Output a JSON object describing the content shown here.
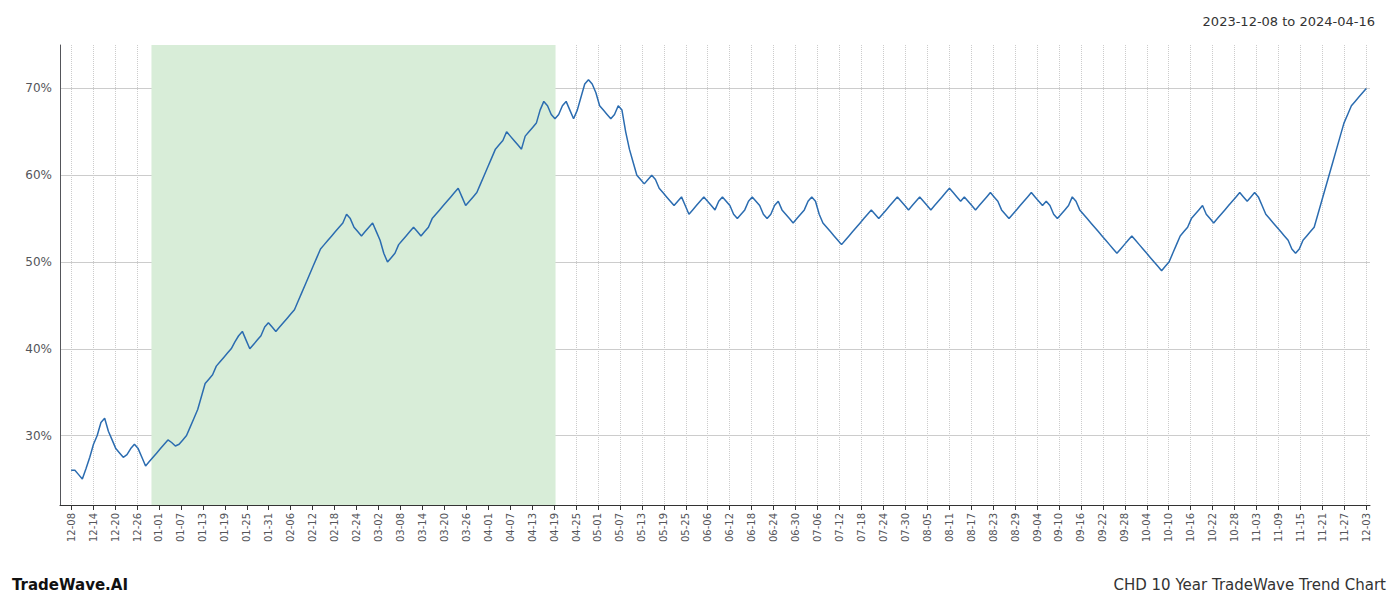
{
  "chart_data": {
    "type": "line",
    "title": "2023-12-08 to 2024-04-16",
    "annotations": [
      "TradeWave.AI",
      "CHD 10 Year TradeWave Trend Chart"
    ],
    "color": "#2b6cb0",
    "grid": true,
    "shade": {
      "x_start": 21.576,
      "x_end": 130.152,
      "color": "#d8edd8"
    },
    "xlim": [
      -3,
      349
    ],
    "xticks": [
      {
        "value": 0,
        "label": "12-08"
      },
      {
        "value": 5.898305,
        "label": "12-14"
      },
      {
        "value": 11.79661,
        "label": "12-20"
      },
      {
        "value": 17.694915,
        "label": "12-26"
      },
      {
        "value": 23.59322,
        "label": "01-01"
      },
      {
        "value": 29.491525,
        "label": "01-07"
      },
      {
        "value": 35.389831,
        "label": "01-13"
      },
      {
        "value": 41.288136,
        "label": "01-19"
      },
      {
        "value": 47.186441,
        "label": "01-25"
      },
      {
        "value": 53.084746,
        "label": "01-31"
      },
      {
        "value": 58.983051,
        "label": "02-06"
      },
      {
        "value": 64.881356,
        "label": "02-12"
      },
      {
        "value": 70.779661,
        "label": "02-18"
      },
      {
        "value": 76.677966,
        "label": "02-24"
      },
      {
        "value": 82.576271,
        "label": "03-02"
      },
      {
        "value": 88.474576,
        "label": "03-08"
      },
      {
        "value": 94.372881,
        "label": "03-14"
      },
      {
        "value": 100.271186,
        "label": "03-20"
      },
      {
        "value": 106.169492,
        "label": "03-26"
      },
      {
        "value": 112.067797,
        "label": "04-01"
      },
      {
        "value": 117.966102,
        "label": "04-07"
      },
      {
        "value": 123.864407,
        "label": "04-13"
      },
      {
        "value": 129.762712,
        "label": "04-19"
      },
      {
        "value": 135.661017,
        "label": "04-25"
      },
      {
        "value": 141.559322,
        "label": "05-01"
      },
      {
        "value": 147.457627,
        "label": "05-07"
      },
      {
        "value": 153.355932,
        "label": "05-13"
      },
      {
        "value": 159.254237,
        "label": "05-19"
      },
      {
        "value": 165.152542,
        "label": "05-25"
      },
      {
        "value": 171.050847,
        "label": "06-06"
      },
      {
        "value": 176.949153,
        "label": "06-12"
      },
      {
        "value": 182.847458,
        "label": "06-18"
      },
      {
        "value": 188.745763,
        "label": "06-24"
      },
      {
        "value": 194.644068,
        "label": "06-30"
      },
      {
        "value": 200.542373,
        "label": "07-06"
      },
      {
        "value": 206.440678,
        "label": "07-12"
      },
      {
        "value": 212.338983,
        "label": "07-18"
      },
      {
        "value": 218.237288,
        "label": "07-24"
      },
      {
        "value": 224.135593,
        "label": "07-30"
      },
      {
        "value": 230.033898,
        "label": "08-05"
      },
      {
        "value": 235.932203,
        "label": "08-11"
      },
      {
        "value": 241.830508,
        "label": "08-17"
      },
      {
        "value": 247.728814,
        "label": "08-23"
      },
      {
        "value": 253.627119,
        "label": "08-29"
      },
      {
        "value": 259.525424,
        "label": "09-04"
      },
      {
        "value": 265.423729,
        "label": "09-10"
      },
      {
        "value": 271.322034,
        "label": "09-16"
      },
      {
        "value": 277.220339,
        "label": "09-22"
      },
      {
        "value": 283.118644,
        "label": "09-28"
      },
      {
        "value": 289.016949,
        "label": "10-04"
      },
      {
        "value": 294.915254,
        "label": "10-10"
      },
      {
        "value": 300.813559,
        "label": "10-16"
      },
      {
        "value": 306.711864,
        "label": "10-22"
      },
      {
        "value": 312.610169,
        "label": "10-28"
      },
      {
        "value": 318.508475,
        "label": "11-03"
      },
      {
        "value": 324.40678,
        "label": "11-09"
      },
      {
        "value": 330.305085,
        "label": "11-15"
      },
      {
        "value": 336.20339,
        "label": "11-21"
      },
      {
        "value": 342.101695,
        "label": "11-27"
      },
      {
        "value": 348,
        "label": "12-03"
      }
    ],
    "ylim": [
      22,
      75
    ],
    "yticks": [
      {
        "value": 30,
        "label": "30%"
      },
      {
        "value": 40,
        "label": "40%"
      },
      {
        "value": 50,
        "label": "50%"
      },
      {
        "value": 60,
        "label": "60%"
      },
      {
        "value": 70,
        "label": "70%"
      }
    ],
    "x": [
      0,
      1,
      2,
      3,
      4,
      5,
      6,
      7,
      8,
      9,
      10,
      11,
      12,
      13,
      14,
      15,
      16,
      17,
      18,
      19,
      20,
      21,
      22,
      23,
      24,
      25,
      26,
      27,
      28,
      29,
      30,
      31,
      32,
      33,
      34,
      35,
      36,
      37,
      38,
      39,
      40,
      41,
      42,
      43,
      44,
      45,
      46,
      47,
      48,
      49,
      50,
      51,
      52,
      53,
      54,
      55,
      56,
      57,
      58,
      59,
      60,
      61,
      62,
      63,
      64,
      65,
      66,
      67,
      68,
      69,
      70,
      71,
      72,
      73,
      74,
      75,
      76,
      77,
      78,
      79,
      80,
      81,
      82,
      83,
      84,
      85,
      86,
      87,
      88,
      89,
      90,
      91,
      92,
      93,
      94,
      95,
      96,
      97,
      98,
      99,
      100,
      101,
      102,
      103,
      104,
      105,
      106,
      107,
      108,
      109,
      110,
      111,
      112,
      113,
      114,
      115,
      116,
      117,
      118,
      119,
      120,
      121,
      122,
      123,
      124,
      125,
      126,
      127,
      128,
      129,
      130,
      131,
      132,
      133,
      134,
      135,
      136,
      137,
      138,
      139,
      140,
      141,
      142,
      143,
      144,
      145,
      146,
      147,
      148,
      149,
      150,
      151,
      152,
      153,
      154,
      155,
      156,
      157,
      158,
      159,
      160,
      161,
      162,
      163,
      164,
      165,
      166,
      167,
      168,
      169,
      170,
      171,
      172,
      173,
      174,
      175,
      176,
      177,
      178,
      179,
      180,
      181,
      182,
      183,
      184,
      185,
      186,
      187,
      188,
      189,
      190,
      191,
      192,
      193,
      194,
      195,
      196,
      197,
      198,
      199,
      200,
      201,
      202,
      203,
      204,
      205,
      206,
      207,
      208,
      209,
      210,
      211,
      212,
      213,
      214,
      215,
      216,
      217,
      218,
      219,
      220,
      221,
      222,
      223,
      224,
      225,
      226,
      227,
      228,
      229,
      230,
      231,
      232,
      233,
      234,
      235,
      236,
      237,
      238,
      239,
      240,
      241,
      242,
      243,
      244,
      245,
      246,
      247,
      248,
      249,
      250,
      251,
      252,
      253,
      254,
      255,
      256,
      257,
      258,
      259,
      260,
      261,
      262,
      263,
      264,
      265,
      266,
      267,
      268,
      269,
      270,
      271,
      272,
      273,
      274,
      275,
      276,
      277,
      278,
      279,
      280,
      281,
      282,
      283,
      284,
      285,
      286,
      287,
      288,
      289,
      290,
      291,
      292,
      293,
      294,
      295,
      296,
      297,
      298,
      299,
      300,
      301,
      302,
      303,
      304,
      305,
      306,
      307,
      308,
      309,
      310,
      311,
      312,
      313,
      314,
      315,
      316,
      317,
      318,
      319,
      320,
      321,
      322,
      323,
      324,
      325,
      326,
      327,
      328,
      329,
      330,
      331,
      332,
      333,
      334,
      335,
      336,
      337,
      338,
      339,
      340,
      341,
      342,
      343,
      344,
      345,
      346,
      347,
      348
    ],
    "values": [
      26.0,
      26.0,
      25.5,
      25.0,
      26.2,
      27.5,
      29.0,
      30.0,
      31.5,
      32.0,
      30.5,
      29.5,
      28.5,
      28.0,
      27.5,
      27.8,
      28.5,
      29.0,
      28.5,
      27.5,
      26.5,
      27.0,
      27.5,
      28.0,
      28.5,
      29.0,
      29.5,
      29.2,
      28.8,
      29.0,
      29.5,
      30.0,
      31.0,
      32.0,
      33.0,
      34.5,
      36.0,
      36.5,
      37.0,
      38.0,
      38.5,
      39.0,
      39.5,
      40.0,
      40.8,
      41.5,
      42.0,
      41.0,
      40.0,
      40.5,
      41.0,
      41.5,
      42.5,
      43.0,
      42.5,
      42.0,
      42.5,
      43.0,
      43.5,
      44.0,
      44.5,
      45.5,
      46.5,
      47.5,
      48.5,
      49.5,
      50.5,
      51.5,
      52.0,
      52.5,
      53.0,
      53.5,
      54.0,
      54.5,
      55.5,
      55.0,
      54.0,
      53.5,
      53.0,
      53.5,
      54.0,
      54.5,
      53.5,
      52.5,
      51.0,
      50.0,
      50.5,
      51.0,
      52.0,
      52.5,
      53.0,
      53.5,
      54.0,
      53.5,
      53.0,
      53.5,
      54.0,
      55.0,
      55.5,
      56.0,
      56.5,
      57.0,
      57.5,
      58.0,
      58.5,
      57.5,
      56.5,
      57.0,
      57.5,
      58.0,
      59.0,
      60.0,
      61.0,
      62.0,
      63.0,
      63.5,
      64.0,
      65.0,
      64.5,
      64.0,
      63.5,
      63.0,
      64.5,
      65.0,
      65.5,
      66.0,
      67.5,
      68.5,
      68.0,
      67.0,
      66.5,
      67.0,
      68.0,
      68.5,
      67.5,
      66.5,
      67.5,
      69.0,
      70.5,
      71.0,
      70.5,
      69.5,
      68.0,
      67.5,
      67.0,
      66.5,
      67.0,
      68.0,
      67.5,
      65.0,
      63.0,
      61.5,
      60.0,
      59.5,
      59.0,
      59.5,
      60.0,
      59.5,
      58.5,
      58.0,
      57.5,
      57.0,
      56.5,
      57.0,
      57.5,
      56.5,
      55.5,
      56.0,
      56.5,
      57.0,
      57.5,
      57.0,
      56.5,
      56.0,
      57.0,
      57.5,
      57.0,
      56.5,
      55.5,
      55.0,
      55.5,
      56.0,
      57.0,
      57.5,
      57.0,
      56.5,
      55.5,
      55.0,
      55.5,
      56.5,
      57.0,
      56.0,
      55.5,
      55.0,
      54.5,
      55.0,
      55.5,
      56.0,
      57.0,
      57.5,
      57.0,
      55.5,
      54.5,
      54.0,
      53.5,
      53.0,
      52.5,
      52.0,
      52.5,
      53.0,
      53.5,
      54.0,
      54.5,
      55.0,
      55.5,
      56.0,
      55.5,
      55.0,
      55.5,
      56.0,
      56.5,
      57.0,
      57.5,
      57.0,
      56.5,
      56.0,
      56.5,
      57.0,
      57.5,
      57.0,
      56.5,
      56.0,
      56.5,
      57.0,
      57.5,
      58.0,
      58.5,
      58.0,
      57.5,
      57.0,
      57.5,
      57.0,
      56.5,
      56.0,
      56.5,
      57.0,
      57.5,
      58.0,
      57.5,
      57.0,
      56.0,
      55.5,
      55.0,
      55.5,
      56.0,
      56.5,
      57.0,
      57.5,
      58.0,
      57.5,
      57.0,
      56.5,
      57.0,
      56.5,
      55.5,
      55.0,
      55.5,
      56.0,
      56.5,
      57.5,
      57.0,
      56.0,
      55.5,
      55.0,
      54.5,
      54.0,
      53.5,
      53.0,
      52.5,
      52.0,
      51.5,
      51.0,
      51.5,
      52.0,
      52.5,
      53.0,
      52.5,
      52.0,
      51.5,
      51.0,
      50.5,
      50.0,
      49.5,
      49.0,
      49.5,
      50.0,
      51.0,
      52.0,
      53.0,
      53.5,
      54.0,
      55.0,
      55.5,
      56.0,
      56.5,
      55.5,
      55.0,
      54.5,
      55.0,
      55.5,
      56.0,
      56.5,
      57.0,
      57.5,
      58.0,
      57.5,
      57.0,
      57.5,
      58.0,
      57.5,
      56.5,
      55.5,
      55.0,
      54.5,
      54.0,
      53.5,
      53.0,
      52.5,
      51.5,
      51.0,
      51.5,
      52.5,
      53.0,
      53.5,
      54.0,
      55.5,
      57.0,
      58.5,
      60.0,
      61.5,
      63.0,
      64.5,
      66.0,
      67.0,
      68.0,
      68.5,
      69.0,
      69.5,
      70.0
    ]
  }
}
